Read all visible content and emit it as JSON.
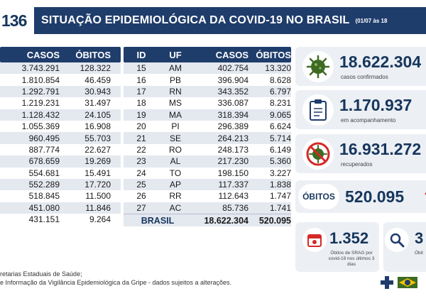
{
  "header": {
    "number": "136",
    "title": "SITUAÇÃO EPIDEMIOLÓGICA DA COVID-19 NO BRASIL",
    "date": "(01/07 às 18"
  },
  "left_table": {
    "headers": [
      "CASOS",
      "ÓBITOS"
    ],
    "rows": [
      {
        "cases": "3.743.291",
        "deaths": "128.322"
      },
      {
        "cases": "1.810.854",
        "deaths": "46.459"
      },
      {
        "cases": "1.292.791",
        "deaths": "30.943"
      },
      {
        "cases": "1.219.231",
        "deaths": "31.497"
      },
      {
        "cases": "1.128.432",
        "deaths": "24.105"
      },
      {
        "cases": "1.055.369",
        "deaths": "16.908"
      },
      {
        "cases": "960.495",
        "deaths": "55.703"
      },
      {
        "cases": "887.774",
        "deaths": "22.627"
      },
      {
        "cases": "678.659",
        "deaths": "19.269"
      },
      {
        "cases": "554.681",
        "deaths": "15.491"
      },
      {
        "cases": "552.289",
        "deaths": "17.720"
      },
      {
        "cases": "518.845",
        "deaths": "11.500"
      },
      {
        "cases": "451.080",
        "deaths": "11.846"
      },
      {
        "cases": "431.151",
        "deaths": "9.264"
      }
    ]
  },
  "right_table": {
    "headers": [
      "ID",
      "UF",
      "CASOS",
      "ÓBITOS"
    ],
    "rows": [
      {
        "id": "15",
        "uf": "AM",
        "cases": "402.754",
        "deaths": "13.320"
      },
      {
        "id": "16",
        "uf": "PB",
        "cases": "396.904",
        "deaths": "8.628"
      },
      {
        "id": "17",
        "uf": "RN",
        "cases": "343.352",
        "deaths": "6.797"
      },
      {
        "id": "18",
        "uf": "MS",
        "cases": "336.087",
        "deaths": "8.231"
      },
      {
        "id": "19",
        "uf": "MA",
        "cases": "318.394",
        "deaths": "9.065"
      },
      {
        "id": "20",
        "uf": "PI",
        "cases": "296.389",
        "deaths": "6.624"
      },
      {
        "id": "21",
        "uf": "SE",
        "cases": "264.213",
        "deaths": "5.714"
      },
      {
        "id": "22",
        "uf": "RO",
        "cases": "248.173",
        "deaths": "6.149"
      },
      {
        "id": "23",
        "uf": "AL",
        "cases": "217.230",
        "deaths": "5.360"
      },
      {
        "id": "24",
        "uf": "TO",
        "cases": "198.150",
        "deaths": "3.227"
      },
      {
        "id": "25",
        "uf": "AP",
        "cases": "117.337",
        "deaths": "1.838"
      },
      {
        "id": "26",
        "uf": "RR",
        "cases": "112.643",
        "deaths": "1.747"
      },
      {
        "id": "27",
        "uf": "AC",
        "cases": "85.736",
        "deaths": "1.741"
      }
    ],
    "total": {
      "label": "BRASIL",
      "cases": "18.622.304",
      "deaths": "520.095"
    }
  },
  "cards": {
    "confirmed": {
      "value": "18.622.304",
      "label": "casos confirmados",
      "icon": "virus-icon"
    },
    "monitoring": {
      "value": "1.170.937",
      "label": "em acompanhamento",
      "icon": "clipboard-icon"
    },
    "recovered": {
      "value": "16.931.272",
      "label": "recuperados",
      "icon": "no-virus-icon"
    },
    "deaths": {
      "tag": "ÓBITOS",
      "value": "520.095",
      "icon": "arrow-up-icon"
    },
    "srag": {
      "value": "1.352",
      "label": "Óbitos de SRAG por covid-19 nos últimos 3 dias",
      "icon": "calendar-icon"
    },
    "investigation": {
      "value": "3",
      "label": "Óbit",
      "icon": "magnifier-icon"
    }
  },
  "footer": {
    "line1": "retarias Estaduais de Saúde;",
    "line2": "e Informação da Vigilância Epidemiológica da Gripe - dados sujeitos a alterações."
  },
  "colors": {
    "navy": "#1f3d6b",
    "red": "#d62828",
    "green": "#3e6b22"
  }
}
